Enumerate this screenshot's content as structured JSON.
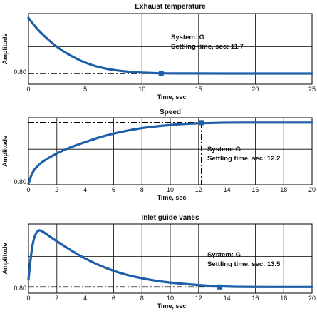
{
  "chart_data": [
    {
      "type": "line",
      "title": "Exhaust temperature",
      "xlabel": "Time, sec",
      "ylabel": "Amplitude",
      "xlim": [
        0,
        25
      ],
      "xticks": [
        "0",
        "5",
        "10",
        "15",
        "20",
        "25"
      ],
      "ytick_label": "0.80",
      "annotation": [
        "System: G",
        "Settling time, sec: 11.7"
      ],
      "settling_time": 11.7,
      "series": [
        {
          "x": [
            0,
            0.5,
            1,
            2,
            3,
            4,
            5,
            6,
            7,
            8,
            9,
            10,
            11,
            11.7,
            13,
            15,
            20,
            25
          ],
          "y": [
            1.0,
            0.93,
            0.87,
            0.77,
            0.69,
            0.63,
            0.58,
            0.545,
            0.52,
            0.505,
            0.495,
            0.488,
            0.484,
            0.482,
            0.481,
            0.48,
            0.48,
            0.48
          ]
        }
      ],
      "steady_state": 0.48,
      "grid": true
    },
    {
      "type": "line",
      "title": "Speed",
      "xlabel": "Time, sec",
      "ylabel": "Amplitude",
      "xlim": [
        0,
        20
      ],
      "xticks": [
        "0",
        "2",
        "4",
        "6",
        "8",
        "10",
        "12",
        "14",
        "16",
        "18",
        "20"
      ],
      "ytick_label": "0.80",
      "annotation": [
        "System: G",
        "Settling time, sec: 12.2"
      ],
      "settling_time": 12.2,
      "series": [
        {
          "x": [
            0,
            0.3,
            0.7,
            1,
            2,
            3,
            4,
            5,
            6,
            7,
            8,
            9,
            10,
            11,
            12.2,
            14,
            16,
            18,
            20
          ],
          "y": [
            0.0,
            0.2,
            0.3,
            0.36,
            0.5,
            0.6,
            0.68,
            0.76,
            0.82,
            0.87,
            0.91,
            0.94,
            0.96,
            0.98,
            0.99,
            1.0,
            1.0,
            1.0,
            1.0
          ]
        }
      ],
      "steady_state": 1.0,
      "grid": true
    },
    {
      "type": "line",
      "title": "Inlet guide vanes",
      "xlabel": "Time, sec",
      "ylabel": "Amplitude",
      "xlim": [
        0,
        20
      ],
      "xticks": [
        "0",
        "2",
        "4",
        "6",
        "8",
        "10",
        "12",
        "14",
        "16",
        "18",
        "20"
      ],
      "ytick_label": "0.80",
      "annotation": [
        "System: G",
        "Settling time, sec: 13.5"
      ],
      "settling_time": 13.5,
      "series": [
        {
          "x": [
            0,
            0.2,
            0.4,
            0.7,
            1,
            1.5,
            2,
            3,
            4,
            5,
            6,
            7,
            8,
            9,
            10,
            11,
            12,
            13.5,
            15,
            20
          ],
          "y": [
            0.15,
            0.6,
            0.85,
            0.96,
            0.93,
            0.85,
            0.77,
            0.62,
            0.49,
            0.38,
            0.29,
            0.22,
            0.17,
            0.13,
            0.1,
            0.08,
            0.06,
            0.04,
            0.03,
            0.03
          ]
        }
      ],
      "steady_state": 0.03,
      "grid": true
    }
  ],
  "colors": {
    "line": "#1f5fa8",
    "grid": "#000000",
    "reference": "#000000"
  }
}
